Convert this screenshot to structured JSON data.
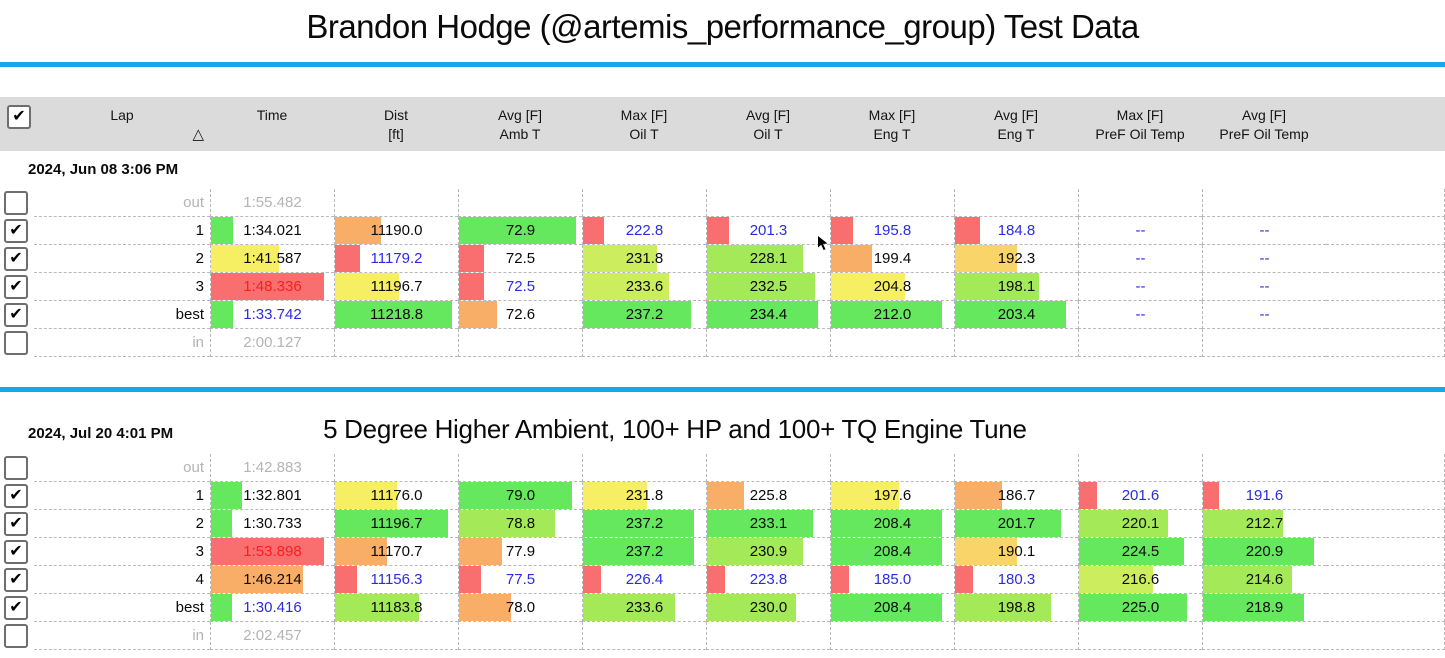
{
  "page": {
    "title": "Brandon Hodge (@artemis_performance_group) Test Data",
    "accent_color": "#14a8e8"
  },
  "icons": {
    "checkbox_check": "✔",
    "delta_symbol": "△",
    "mouse_cursor": "arrow-pointer"
  },
  "text_colors": {
    "black": "#0a0a0a",
    "blue": "#2b2be2",
    "red": "#fb1f1f",
    "gray": "#b4b4b4"
  },
  "bar_colors": {
    "green": "#65e75e",
    "lime": "#a4ea58",
    "ygreen": "#ccee5e",
    "yellow": "#f6ee63",
    "gold": "#f8d469",
    "orange": "#f8ae66",
    "red": "#f96e6f"
  },
  "columns": [
    {
      "id": "select",
      "l1": "",
      "l2": ""
    },
    {
      "id": "lap",
      "l1": "Lap",
      "l2": "△"
    },
    {
      "id": "time",
      "l1": "Time",
      "l2": ""
    },
    {
      "id": "dist",
      "l1": "Dist",
      "l2": "[ft]"
    },
    {
      "id": "amb_avg",
      "l1": "Avg [F]",
      "l2": "Amb T"
    },
    {
      "id": "oil_max",
      "l1": "Max [F]",
      "l2": "Oil T"
    },
    {
      "id": "oil_avg",
      "l1": "Avg [F]",
      "l2": "Oil T"
    },
    {
      "id": "eng_max",
      "l1": "Max [F]",
      "l2": "Eng T"
    },
    {
      "id": "eng_avg",
      "l1": "Avg [F]",
      "l2": "Eng T"
    },
    {
      "id": "pref_oil_max",
      "l1": "Max [F]",
      "l2": "PreF Oil Temp"
    },
    {
      "id": "pref_oil_avg",
      "l1": "Avg [F]",
      "l2": "PreF Oil Temp"
    }
  ],
  "sections": [
    {
      "date_label": "2024, Jun 08 3:06 PM",
      "note": "",
      "rows": [
        {
          "checked": false,
          "lap": "out",
          "muted": true,
          "cells": [
            {
              "t": "1:55.482",
              "c": "gray"
            },
            {},
            {},
            {},
            {},
            {},
            {},
            {},
            {}
          ]
        },
        {
          "checked": true,
          "lap": "1",
          "muted": false,
          "cells": [
            {
              "t": "1:34.021",
              "c": "black",
              "b": "green",
              "w": 0.18
            },
            {
              "t": "11190.0",
              "c": "black",
              "b": "orange",
              "w": 0.37
            },
            {
              "t": "72.9",
              "c": "black",
              "b": "green",
              "w": 0.95
            },
            {
              "t": "222.8",
              "c": "blue",
              "b": "red",
              "w": 0.17
            },
            {
              "t": "201.3",
              "c": "blue",
              "b": "red",
              "w": 0.18
            },
            {
              "t": "195.8",
              "c": "blue",
              "b": "red",
              "w": 0.18
            },
            {
              "t": "184.8",
              "c": "blue",
              "b": "red",
              "w": 0.2
            },
            {
              "t": "--",
              "c": "blue"
            },
            {
              "t": "--",
              "c": "blue"
            }
          ]
        },
        {
          "checked": true,
          "lap": "2",
          "muted": false,
          "cells": [
            {
              "t": "1:41.587",
              "c": "black",
              "b": "yellow",
              "w": 0.55
            },
            {
              "t": "11179.2",
              "c": "blue",
              "b": "red",
              "w": 0.2
            },
            {
              "t": "72.5",
              "c": "black",
              "b": "red",
              "w": 0.2
            },
            {
              "t": "231.8",
              "c": "black",
              "b": "ygreen",
              "w": 0.6
            },
            {
              "t": "228.1",
              "c": "black",
              "b": "lime",
              "w": 0.78
            },
            {
              "t": "199.4",
              "c": "black",
              "b": "orange",
              "w": 0.33
            },
            {
              "t": "192.3",
              "c": "black",
              "b": "gold",
              "w": 0.5
            },
            {
              "t": "--",
              "c": "blue"
            },
            {
              "t": "--",
              "c": "blue"
            }
          ]
        },
        {
          "checked": true,
          "lap": "3",
          "muted": false,
          "cells": [
            {
              "t": "1:48.336",
              "c": "red",
              "b": "red",
              "w": 0.92
            },
            {
              "t": "11196.7",
              "c": "black",
              "b": "yellow",
              "w": 0.52
            },
            {
              "t": "72.5",
              "c": "blue",
              "b": "red",
              "w": 0.2
            },
            {
              "t": "233.6",
              "c": "black",
              "b": "ygreen",
              "w": 0.7
            },
            {
              "t": "232.5",
              "c": "black",
              "b": "lime",
              "w": 0.88
            },
            {
              "t": "204.8",
              "c": "black",
              "b": "yellow",
              "w": 0.6
            },
            {
              "t": "198.1",
              "c": "black",
              "b": "lime",
              "w": 0.68
            },
            {
              "t": "--",
              "c": "blue"
            },
            {
              "t": "--",
              "c": "blue"
            }
          ]
        },
        {
          "checked": true,
          "lap": "best",
          "muted": false,
          "cells": [
            {
              "t": "1:33.742",
              "c": "blue",
              "b": "green",
              "w": 0.18
            },
            {
              "t": "11218.8",
              "c": "black",
              "b": "green",
              "w": 0.95
            },
            {
              "t": "72.6",
              "c": "black",
              "b": "orange",
              "w": 0.31
            },
            {
              "t": "237.2",
              "c": "black",
              "b": "green",
              "w": 0.88
            },
            {
              "t": "234.4",
              "c": "black",
              "b": "green",
              "w": 0.9
            },
            {
              "t": "212.0",
              "c": "black",
              "b": "green",
              "w": 0.9
            },
            {
              "t": "203.4",
              "c": "black",
              "b": "green",
              "w": 0.9
            },
            {
              "t": "--",
              "c": "blue"
            },
            {
              "t": "--",
              "c": "blue"
            }
          ]
        },
        {
          "checked": false,
          "lap": "in",
          "muted": true,
          "cells": [
            {
              "t": "2:00.127",
              "c": "gray"
            },
            {},
            {},
            {},
            {},
            {},
            {},
            {},
            {}
          ]
        }
      ]
    },
    {
      "date_label": "2024, Jul 20 4:01 PM",
      "note": "5 Degree Higher Ambient, 100+ HP and 100+ TQ Engine Tune",
      "rows": [
        {
          "checked": false,
          "lap": "out",
          "muted": true,
          "cells": [
            {
              "t": "1:42.883",
              "c": "gray"
            },
            {},
            {},
            {},
            {},
            {},
            {},
            {},
            {}
          ]
        },
        {
          "checked": true,
          "lap": "1",
          "muted": false,
          "cells": [
            {
              "t": "1:32.801",
              "c": "black",
              "b": "green",
              "w": 0.25
            },
            {
              "t": "11176.0",
              "c": "black",
              "b": "yellow",
              "w": 0.5
            },
            {
              "t": "79.0",
              "c": "black",
              "b": "green",
              "w": 0.92
            },
            {
              "t": "231.8",
              "c": "black",
              "b": "yellow",
              "w": 0.52
            },
            {
              "t": "225.8",
              "c": "black",
              "b": "orange",
              "w": 0.3
            },
            {
              "t": "197.6",
              "c": "black",
              "b": "yellow",
              "w": 0.55
            },
            {
              "t": "186.7",
              "c": "black",
              "b": "orange",
              "w": 0.38
            },
            {
              "t": "201.6",
              "c": "blue",
              "b": "red",
              "w": 0.15
            },
            {
              "t": "191.6",
              "c": "blue",
              "b": "red",
              "w": 0.13
            }
          ]
        },
        {
          "checked": true,
          "lap": "2",
          "muted": false,
          "cells": [
            {
              "t": "1:30.733",
              "c": "black",
              "b": "green",
              "w": 0.17
            },
            {
              "t": "11196.7",
              "c": "black",
              "b": "green",
              "w": 0.92
            },
            {
              "t": "78.8",
              "c": "black",
              "b": "lime",
              "w": 0.78
            },
            {
              "t": "237.2",
              "c": "black",
              "b": "green",
              "w": 0.9
            },
            {
              "t": "233.1",
              "c": "black",
              "b": "green",
              "w": 0.86
            },
            {
              "t": "208.4",
              "c": "black",
              "b": "green",
              "w": 0.9
            },
            {
              "t": "201.7",
              "c": "black",
              "b": "green",
              "w": 0.86
            },
            {
              "t": "220.1",
              "c": "black",
              "b": "lime",
              "w": 0.72
            },
            {
              "t": "212.7",
              "c": "black",
              "b": "lime",
              "w": 0.65
            }
          ]
        },
        {
          "checked": true,
          "lap": "3",
          "muted": false,
          "cells": [
            {
              "t": "1:53.898",
              "c": "red",
              "b": "red",
              "w": 0.92
            },
            {
              "t": "11170.7",
              "c": "black",
              "b": "orange",
              "w": 0.42
            },
            {
              "t": "77.9",
              "c": "black",
              "b": "orange",
              "w": 0.35
            },
            {
              "t": "237.2",
              "c": "black",
              "b": "green",
              "w": 0.9
            },
            {
              "t": "230.9",
              "c": "black",
              "b": "lime",
              "w": 0.78
            },
            {
              "t": "208.4",
              "c": "black",
              "b": "green",
              "w": 0.9
            },
            {
              "t": "190.1",
              "c": "black",
              "b": "gold",
              "w": 0.5
            },
            {
              "t": "224.5",
              "c": "black",
              "b": "green",
              "w": 0.85
            },
            {
              "t": "220.9",
              "c": "black",
              "b": "green",
              "w": 0.9
            }
          ]
        },
        {
          "checked": true,
          "lap": "4",
          "muted": false,
          "cells": [
            {
              "t": "1:46.214",
              "c": "black",
              "b": "orange",
              "w": 0.75
            },
            {
              "t": "11156.3",
              "c": "blue",
              "b": "red",
              "w": 0.18
            },
            {
              "t": "77.5",
              "c": "blue",
              "b": "red",
              "w": 0.18
            },
            {
              "t": "226.4",
              "c": "blue",
              "b": "red",
              "w": 0.15
            },
            {
              "t": "223.8",
              "c": "blue",
              "b": "red",
              "w": 0.15
            },
            {
              "t": "185.0",
              "c": "blue",
              "b": "red",
              "w": 0.15
            },
            {
              "t": "180.3",
              "c": "blue",
              "b": "red",
              "w": 0.15
            },
            {
              "t": "216.6",
              "c": "black",
              "b": "ygreen",
              "w": 0.6
            },
            {
              "t": "214.6",
              "c": "black",
              "b": "lime",
              "w": 0.72
            }
          ]
        },
        {
          "checked": true,
          "lap": "best",
          "muted": false,
          "cells": [
            {
              "t": "1:30.416",
              "c": "blue",
              "b": "green",
              "w": 0.17
            },
            {
              "t": "11183.8",
              "c": "black",
              "b": "lime",
              "w": 0.68
            },
            {
              "t": "78.0",
              "c": "black",
              "b": "orange",
              "w": 0.42
            },
            {
              "t": "233.6",
              "c": "black",
              "b": "lime",
              "w": 0.75
            },
            {
              "t": "230.0",
              "c": "black",
              "b": "lime",
              "w": 0.72
            },
            {
              "t": "208.4",
              "c": "black",
              "b": "green",
              "w": 0.9
            },
            {
              "t": "198.8",
              "c": "black",
              "b": "lime",
              "w": 0.78
            },
            {
              "t": "225.0",
              "c": "black",
              "b": "green",
              "w": 0.88
            },
            {
              "t": "218.9",
              "c": "black",
              "b": "green",
              "w": 0.82
            }
          ]
        },
        {
          "checked": false,
          "lap": "in",
          "muted": true,
          "cells": [
            {
              "t": "2:02.457",
              "c": "gray"
            },
            {},
            {},
            {},
            {},
            {},
            {},
            {},
            {}
          ]
        }
      ]
    }
  ]
}
